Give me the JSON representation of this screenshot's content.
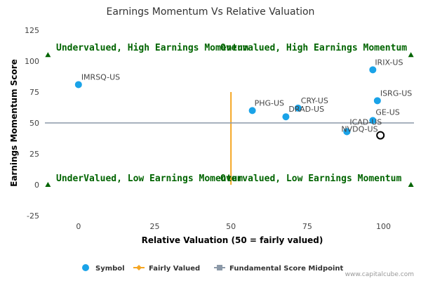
{
  "chart_data": {
    "type": "scatter",
    "title": "Earnings Momentum Vs Relative Valuation",
    "xlabel": "Relative Valuation (50 = fairly valued)",
    "ylabel": "Earnings Momentum Score",
    "xlim": [
      -11,
      110
    ],
    "ylim": [
      -25,
      125
    ],
    "x_ticks": [
      0,
      25,
      50,
      75,
      100
    ],
    "y_ticks": [
      -25,
      0,
      25,
      50,
      75,
      100,
      125
    ],
    "grid": false,
    "legend_position": "bottom",
    "points": [
      {
        "label": "IMRSQ-US",
        "x": 0,
        "y": 81
      },
      {
        "label": "PHG-US",
        "x": 57,
        "y": 60
      },
      {
        "label": "CRY-US",
        "x": 72,
        "y": 62
      },
      {
        "label": "DRAD-US",
        "x": 68,
        "y": 55
      },
      {
        "label": "IRIX-US",
        "x": 96.5,
        "y": 93
      },
      {
        "label": "ISRG-US",
        "x": 98,
        "y": 68
      },
      {
        "label": "GE-US",
        "x": 96.5,
        "y": 52
      },
      {
        "label": "ICAD-US",
        "x": 88,
        "y": 43
      },
      {
        "label": "NVDQ-US",
        "x": 88,
        "y": 43
      }
    ],
    "highlight_point": {
      "x": 99,
      "y": 40
    },
    "fairly_valued_x": 50,
    "midpoint_y": 50,
    "marker_points": [
      {
        "x": -10,
        "y": 105
      },
      {
        "x": 109,
        "y": 105
      },
      {
        "x": -10,
        "y": 0
      },
      {
        "x": 109,
        "y": 0
      }
    ],
    "quadrants": {
      "top_left": "Undervalued, High Earnings Momentum",
      "top_right": "Overvalued, High Earnings Momentum",
      "bottom_left": "UnderValued, Low Earnings Momentum",
      "bottom_right": "Overvalued, Low Earnings Momentum"
    },
    "legend": [
      {
        "name": "Symbol",
        "kind": "circle",
        "color": "#1aa3e8"
      },
      {
        "name": "Fairly Valued",
        "kind": "diamond-line",
        "color": "#f5a623"
      },
      {
        "name": "Fundamental Score Midpoint",
        "kind": "square-line",
        "color": "#8c99a8"
      }
    ],
    "colors": {
      "points": "#1aa3e8",
      "fairly_valued": "#f5a623",
      "midpoint": "#8c99a8",
      "quadrant_text": "#006400",
      "markers": "#006400"
    }
  },
  "credit": "www.capitalcube.com"
}
